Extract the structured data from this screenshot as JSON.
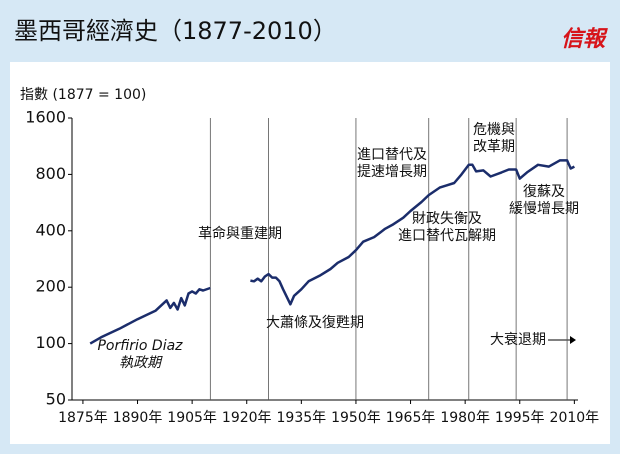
{
  "chart_data": {
    "type": "line",
    "title": "墨西哥經濟史（1877-2010）",
    "logo": "信報",
    "y_label": "指數 (1877 = 100)",
    "log_y": true,
    "color": "#1b2d6b",
    "xlim": [
      1872,
      2011
    ],
    "ylim": [
      50,
      1600
    ],
    "xticks": [
      {
        "value": 1875,
        "label": "1875年"
      },
      {
        "value": 1890,
        "label": "1890年"
      },
      {
        "value": 1905,
        "label": "1905年"
      },
      {
        "value": 1920,
        "label": "1920年"
      },
      {
        "value": 1935,
        "label": "1935年"
      },
      {
        "value": 1950,
        "label": "1950年"
      },
      {
        "value": 1965,
        "label": "1965年"
      },
      {
        "value": 1980,
        "label": "1980年"
      },
      {
        "value": 1995,
        "label": "1995年"
      },
      {
        "value": 2010,
        "label": "2010年"
      }
    ],
    "yticks": [
      50,
      100,
      200,
      400,
      800,
      1600
    ],
    "dividers": [
      1910,
      1926,
      1950,
      1970,
      1981,
      1994,
      2008
    ],
    "x": [
      1877,
      1880,
      1885,
      1890,
      1895,
      1898,
      1899,
      1900,
      1901,
      1902,
      1903,
      1904,
      1905,
      1906,
      1907,
      1908,
      1910,
      1915,
      1921,
      1922,
      1923,
      1924,
      1925,
      1926,
      1927,
      1928,
      1929,
      1930,
      1932,
      1933,
      1935,
      1937,
      1940,
      1943,
      1945,
      1948,
      1950,
      1952,
      1955,
      1958,
      1960,
      1963,
      1965,
      1968,
      1970,
      1973,
      1975,
      1977,
      1979,
      1981,
      1982,
      1983,
      1985,
      1987,
      1990,
      1992,
      1994,
      1995,
      1997,
      2000,
      2003,
      2006,
      2008,
      2009,
      2010
    ],
    "values": [
      100,
      108,
      120,
      135,
      150,
      170,
      155,
      165,
      152,
      175,
      160,
      185,
      190,
      185,
      195,
      192,
      198,
      null,
      217,
      215,
      222,
      215,
      228,
      235,
      225,
      225,
      215,
      195,
      162,
      180,
      195,
      215,
      230,
      250,
      270,
      290,
      315,
      350,
      370,
      410,
      430,
      470,
      510,
      570,
      620,
      680,
      700,
      720,
      800,
      900,
      900,
      830,
      840,
      780,
      820,
      850,
      850,
      760,
      820,
      900,
      880,
      950,
      950,
      860,
      880
    ],
    "annotations": [
      [
        "革命與重建期"
      ],
      [
        "Porfirio Diaz",
        "執政期"
      ],
      [
        "大蕭條及復甦期"
      ],
      [
        "進口替代及",
        "提速增長期"
      ],
      [
        "財政失衡及",
        "進口替代瓦解期"
      ],
      [
        "危機與",
        "改革期"
      ],
      [
        "復蘇及",
        "緩慢增長期"
      ],
      [
        "大衰退期"
      ]
    ]
  }
}
